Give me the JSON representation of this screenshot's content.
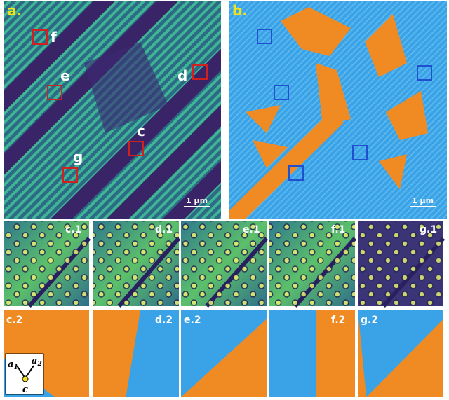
{
  "figure": {
    "a": {
      "label": "a.",
      "scale_bar": "1 μm",
      "regions": [
        "f",
        "e",
        "d",
        "c",
        "g"
      ]
    },
    "b": {
      "label": "b.",
      "scale_bar": "1 μm"
    },
    "row1": [
      "c.1",
      "d.1",
      "e.1",
      "f.1",
      "g.1"
    ],
    "row2": [
      "c.2",
      "d.2",
      "e.2",
      "f.2",
      "g.2"
    ],
    "axes": {
      "a1": [
        "a",
        "1"
      ],
      "a2": [
        "a",
        "2"
      ],
      "c": "c"
    }
  }
}
